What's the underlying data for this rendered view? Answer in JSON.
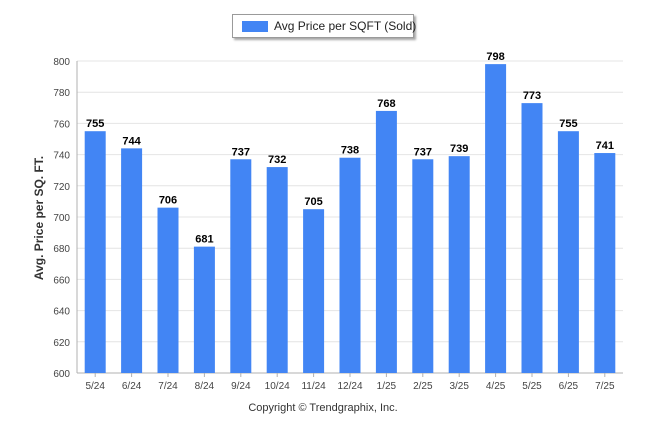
{
  "legend": {
    "label": "Avg Price per SQFT (Sold)"
  },
  "copyright": "Copyright © Trendgraphix, Inc.",
  "colors": {
    "bar": "#4285f4",
    "grid": "#e4e4e4",
    "axis": "#b0b0b0"
  },
  "chart_data": {
    "type": "bar",
    "categories": [
      "5/24",
      "6/24",
      "7/24",
      "8/24",
      "9/24",
      "10/24",
      "11/24",
      "12/24",
      "1/25",
      "2/25",
      "3/25",
      "4/25",
      "5/25",
      "6/25",
      "7/25"
    ],
    "series": [
      {
        "name": "Avg Price per SQFT (Sold)",
        "values": [
          755,
          744,
          706,
          681,
          737,
          732,
          705,
          738,
          768,
          737,
          739,
          798,
          773,
          755,
          741
        ]
      }
    ],
    "ylabel": "Avg. Price per SQ. FT.",
    "xlabel": "",
    "ylim": [
      600,
      800
    ],
    "yticks": [
      600,
      620,
      640,
      660,
      680,
      700,
      720,
      740,
      760,
      780,
      800
    ],
    "grid": true,
    "legend_position": "top-center"
  }
}
